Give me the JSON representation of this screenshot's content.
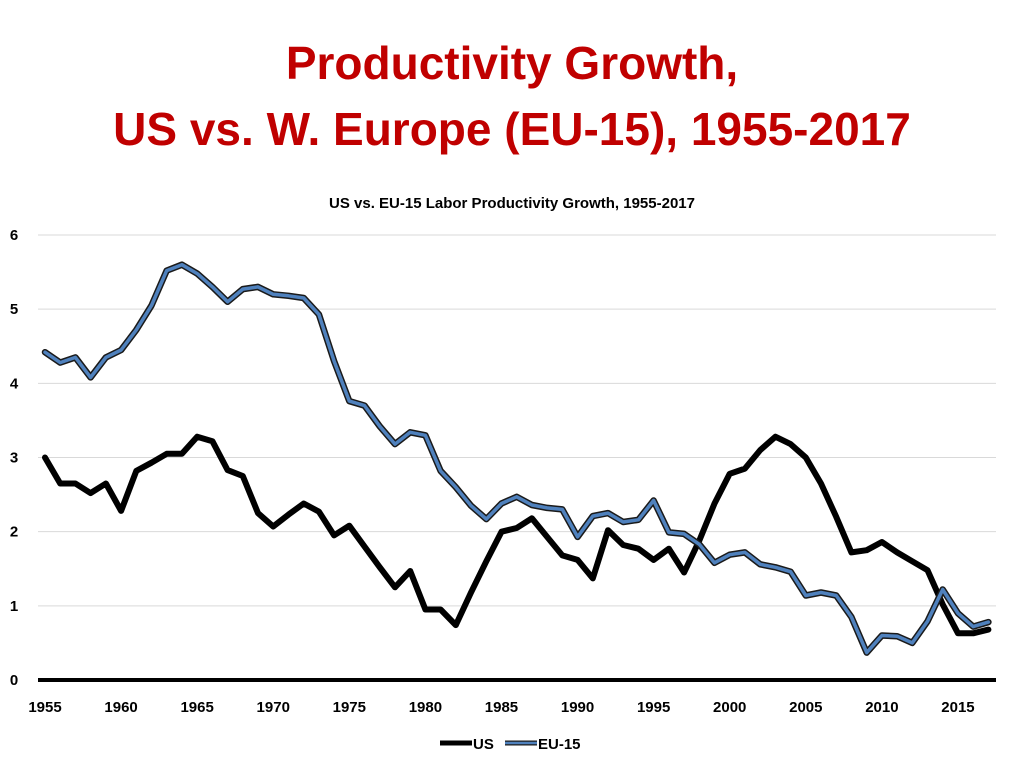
{
  "slide": {
    "title_line1": "Productivity Growth,",
    "title_line2": "US vs. W. Europe (EU-15), 1955-2017"
  },
  "colors": {
    "title": "#c00000",
    "us": "#000000",
    "eu15": "#4f81bd",
    "eu15_outline": "#1a1a1a",
    "grid": "#d9d9d9"
  },
  "chart_data": {
    "type": "line",
    "title": "US vs. EU-15 Labor Productivity Growth, 1955-2017",
    "xlabel": "",
    "ylabel": "",
    "xlim": [
      1955,
      2017.5
    ],
    "ylim": [
      0,
      6
    ],
    "x_ticks": [
      1955,
      1960,
      1965,
      1970,
      1975,
      1980,
      1985,
      1990,
      1995,
      2000,
      2005,
      2010,
      2015
    ],
    "y_ticks": [
      0,
      1,
      2,
      3,
      4,
      5,
      6
    ],
    "grid": true,
    "legend_position": "bottom-center",
    "x": [
      1955,
      1956,
      1957,
      1958,
      1959,
      1960,
      1961,
      1962,
      1963,
      1964,
      1965,
      1966,
      1967,
      1968,
      1969,
      1970,
      1971,
      1972,
      1973,
      1974,
      1975,
      1976,
      1977,
      1978,
      1979,
      1980,
      1981,
      1982,
      1983,
      1984,
      1985,
      1986,
      1987,
      1988,
      1989,
      1990,
      1991,
      1992,
      1993,
      1994,
      1995,
      1996,
      1997,
      1998,
      1999,
      2000,
      2001,
      2002,
      2003,
      2004,
      2005,
      2006,
      2007,
      2008,
      2009,
      2010,
      2011,
      2012,
      2013,
      2014,
      2015,
      2016,
      2017
    ],
    "series": [
      {
        "name": "US",
        "values": [
          3.0,
          2.65,
          2.65,
          2.52,
          2.65,
          2.28,
          2.82,
          2.93,
          3.05,
          3.05,
          3.28,
          3.22,
          2.83,
          2.75,
          2.25,
          2.07,
          2.23,
          2.38,
          2.27,
          1.95,
          2.08,
          1.8,
          1.52,
          1.25,
          1.47,
          0.95,
          0.95,
          0.74,
          1.18,
          1.6,
          2.0,
          2.05,
          2.18,
          1.93,
          1.68,
          1.62,
          1.37,
          2.02,
          1.82,
          1.77,
          1.62,
          1.77,
          1.45,
          1.88,
          2.38,
          2.78,
          2.85,
          3.1,
          3.28,
          3.18,
          3.0,
          2.65,
          2.2,
          1.72,
          1.75,
          1.86,
          1.72,
          1.6,
          1.48,
          1.02,
          0.63,
          0.63,
          0.68
        ]
      },
      {
        "name": "EU-15",
        "values": [
          4.42,
          4.28,
          4.35,
          4.08,
          4.35,
          4.45,
          4.72,
          5.05,
          5.52,
          5.6,
          5.48,
          5.3,
          5.1,
          5.27,
          5.3,
          5.2,
          5.18,
          5.15,
          4.93,
          4.3,
          3.76,
          3.7,
          3.42,
          3.18,
          3.34,
          3.3,
          2.82,
          2.6,
          2.35,
          2.17,
          2.38,
          2.47,
          2.36,
          2.32,
          2.3,
          1.93,
          2.21,
          2.25,
          2.13,
          2.16,
          2.42,
          1.99,
          1.97,
          1.83,
          1.58,
          1.69,
          1.72,
          1.56,
          1.52,
          1.46,
          1.14,
          1.18,
          1.14,
          0.85,
          0.37,
          0.6,
          0.59,
          0.5,
          0.79,
          1.22,
          0.9,
          0.72,
          0.78
        ]
      }
    ]
  }
}
